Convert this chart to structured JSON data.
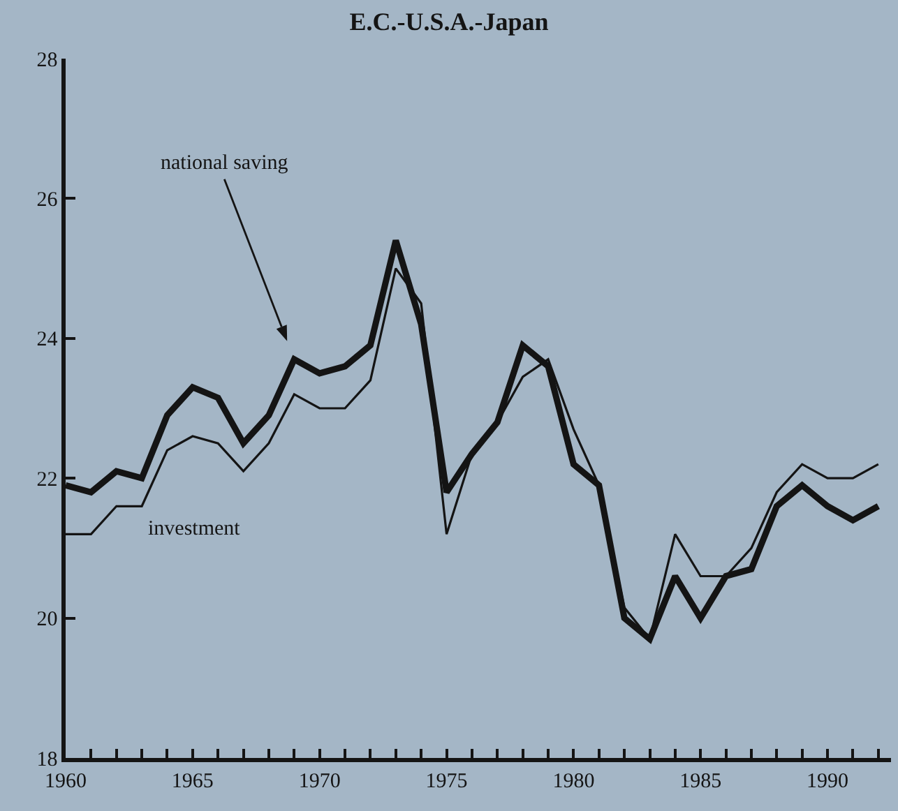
{
  "chart_data": {
    "type": "line",
    "title": "E.C.-U.S.A.-Japan",
    "x": [
      1960,
      1961,
      1962,
      1963,
      1964,
      1965,
      1966,
      1967,
      1968,
      1969,
      1970,
      1971,
      1972,
      1973,
      1974,
      1975,
      1976,
      1977,
      1978,
      1979,
      1980,
      1981,
      1982,
      1983,
      1984,
      1985,
      1986,
      1987,
      1988,
      1989,
      1990,
      1991,
      1992
    ],
    "series": [
      {
        "name": "national saving",
        "color": "#141414",
        "values": [
          21.9,
          21.8,
          22.1,
          22.0,
          22.9,
          23.3,
          23.15,
          22.5,
          22.9,
          23.7,
          23.5,
          23.6,
          23.9,
          25.4,
          24.2,
          21.8,
          22.35,
          22.8,
          23.9,
          23.6,
          22.2,
          21.9,
          20.0,
          19.7,
          20.6,
          20.0,
          20.6,
          20.7,
          21.6,
          21.9,
          21.6,
          21.4,
          21.6
        ]
      },
      {
        "name": "investment",
        "color": "#141414",
        "values": [
          21.2,
          21.2,
          21.6,
          21.6,
          22.4,
          22.6,
          22.5,
          22.1,
          22.5,
          23.2,
          23.0,
          23.0,
          23.4,
          25.0,
          24.5,
          21.2,
          22.35,
          22.8,
          23.45,
          23.7,
          22.7,
          21.9,
          20.15,
          19.7,
          21.2,
          20.6,
          20.6,
          21.0,
          21.8,
          22.2,
          22.0,
          22.0,
          22.2
        ]
      }
    ],
    "xlim": [
      1960,
      1992.5
    ],
    "xticks": [
      1960,
      {
        "value": 1961,
        "label": null
      },
      {
        "value": 1962,
        "label": null
      },
      {
        "value": 1963,
        "label": null
      },
      {
        "value": 1964,
        "label": null
      },
      1965,
      {
        "value": 1966,
        "label": null
      },
      {
        "value": 1967,
        "label": null
      },
      {
        "value": 1968,
        "label": null
      },
      {
        "value": 1969,
        "label": null
      },
      1970,
      {
        "value": 1971,
        "label": null
      },
      {
        "value": 1972,
        "label": null
      },
      {
        "value": 1973,
        "label": null
      },
      {
        "value": 1974,
        "label": null
      },
      1975,
      {
        "value": 1976,
        "label": null
      },
      {
        "value": 1977,
        "label": null
      },
      {
        "value": 1978,
        "label": null
      },
      {
        "value": 1979,
        "label": null
      },
      1980,
      {
        "value": 1981,
        "label": null
      },
      {
        "value": 1982,
        "label": null
      },
      {
        "value": 1983,
        "label": null
      },
      {
        "value": 1984,
        "label": null
      },
      1985,
      {
        "value": 1986,
        "label": null
      },
      {
        "value": 1987,
        "label": null
      },
      {
        "value": 1988,
        "label": null
      },
      {
        "value": 1989,
        "label": null
      },
      1990,
      {
        "value": 1991,
        "label": null
      },
      {
        "value": 1992,
        "label": null
      }
    ],
    "ylim": [
      18,
      28
    ],
    "yticks": [
      18,
      20,
      22,
      24,
      26,
      28
    ],
    "grid": false,
    "legend": false,
    "marker": "none",
    "line_style": "solid"
  }
}
